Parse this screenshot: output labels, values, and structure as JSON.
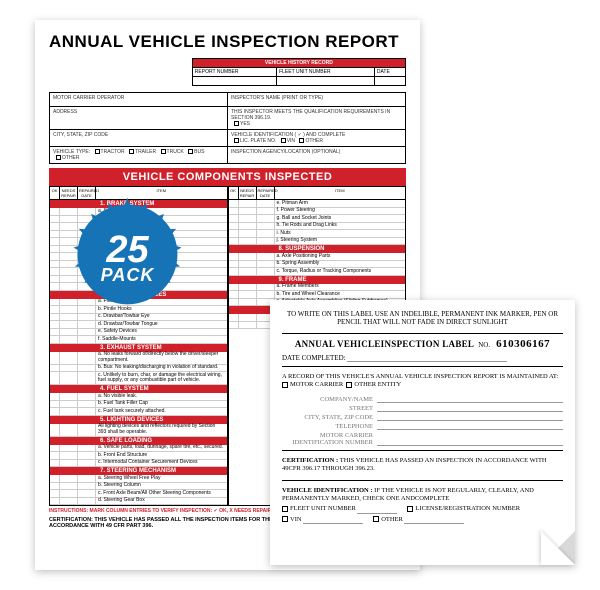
{
  "report": {
    "title": "ANNUAL VEHICLE INSPECTION REPORT",
    "history_header": "VEHICLE HISTORY RECORD",
    "history_cols": [
      "REPORT NUMBER",
      "FLEET UNIT NUMBER",
      "DATE"
    ],
    "info_rows": {
      "r1c1": "MOTOR CARRIER OPERATOR",
      "r1c2": "INSPECTOR'S NAME (PRINT OR TYPE)",
      "r2c1": "ADDRESS",
      "r2c2": "THIS INSPECTOR MEETS THE QUALIFICATION REQUIREMENTS IN SECTION 396.19.",
      "r2c2_opt": "YES",
      "r3c1": "CITY, STATE, ZIP CODE",
      "r3c2": "VEHICLE IDENTIFICATION ( ✓ ) AND COMPLETE",
      "r3c2_opts": [
        "LIC. PLATE NO.",
        "VIN",
        "OTHER"
      ],
      "r4c1_label": "VEHICLE TYPE:",
      "r4c1_opts": [
        "TRACTOR",
        "TRAILER",
        "TRUCK",
        "BUS",
        "OTHER"
      ],
      "r4c2": "INSPECTION AGENCY/LOCATION (OPTIONAL)"
    },
    "components_banner": "VEHICLE COMPONENTS INSPECTED",
    "col_headers": {
      "ok": "OK",
      "repair": "NEEDS REPAIR",
      "date": "REPAIRED DATE",
      "item": "ITEM"
    },
    "sections_left": [
      {
        "title": "1. BRAKE SYSTEM",
        "items": [
          "a. Service Brakes",
          "b. Parking Brake System",
          "c. Brake Drums or Rotors",
          "d. Brake Hose",
          "e. Brake Tubing",
          "f. Low Pressure Warning Device",
          "g. Tractor Protection Valve",
          "h. Air Compressor",
          "i. Electric Brakes",
          "j. Hydraulic Brakes",
          "k. Vacuum Systems"
        ]
      },
      {
        "title": "2. COUPLING DEVICES",
        "items": [
          "a. Fifth Wheels",
          "b. Pintle Hooks",
          "c. Drawbar/Towbar Eye",
          "d. Drawbar/Towbar Tongue",
          "e. Safety Devices",
          "f. Saddle-Mounts"
        ]
      },
      {
        "title": "3. EXHAUST SYSTEM",
        "items": [
          "a. No leaks forward of/directly below the driver/sleeper compartment.",
          "b. Bus: No leaking/discharging in violation of standard.",
          "c. Unlikely to burn, char, or damage the electrical wiring, fuel supply, or any combustible part of vehicle."
        ]
      },
      {
        "title": "4. FUEL SYSTEM",
        "items": [
          "a. No visible leak.",
          "b. Fuel Tank Filler Cap",
          "c. Fuel tank securely attached."
        ]
      },
      {
        "title": "5. LIGHTING DEVICES",
        "items": [
          "All lighting devices and reflectors required by Section 393 shall be operable."
        ]
      },
      {
        "title": "6. SAFE LOADING",
        "items": [
          "a. Vehicle parts, load, dunnage, spare tire, etc., secured.",
          "b. Front End Structure",
          "c. Intermodal Container Securement Devices"
        ]
      },
      {
        "title": "7. STEERING MECHANISM",
        "items": [
          "a. Steering Wheel Free Play",
          "b. Steering Column",
          "c. Front Axle Beam/All Other Steering Components",
          "d. Steering Gear Box"
        ]
      }
    ],
    "sections_right": [
      {
        "title": "",
        "items": [
          "e. Pitman Arm",
          "f. Power Steering",
          "g. Ball and Socket Joints",
          "h. Tie Rods and Drag Links",
          "i. Nuts",
          "j. Steering System"
        ]
      },
      {
        "title": "8. SUSPENSION",
        "items": [
          "a. Axle Positioning Parts",
          "b. Spring Assembly",
          "c. Torque, Radius or Tracking Components"
        ]
      },
      {
        "title": "9. FRAME",
        "items": [
          "a. Frame Members",
          "b. Tire and Wheel Clearance",
          "c. Adjustable Axle Assemblies (Sliding Subframes)"
        ]
      },
      {
        "title": "10. TIRES",
        "items": [
          "a. Steer Axle Tires",
          "b. All Other Tires"
        ]
      }
    ],
    "instructions": "INSTRUCTIONS: MARK COLUMN ENTRIES TO VERIFY INSPECTION: ✓ OK, X NEEDS REPAIR",
    "certification": "CERTIFICATION: THIS VEHICLE HAS PASSED ALL THE INSPECTION ITEMS FOR THE ANNUAL VEHICLE INSPECTION REPORT IN ACCORDANCE WITH 49 CFR PART 396."
  },
  "badge": {
    "number": "25",
    "word": "PACK",
    "color": "#1673b5"
  },
  "label": {
    "top_note": "TO WRITE ON THIS LABEL USE AN INDELIBLE, PERMANENT INK MARKER, PEN OR PENCIL THAT WILL NOT FADE IN DIRECT SUNLIGHT",
    "title": "ANNUAL VEHICLEINSPECTION LABEL",
    "no_label": "NO.",
    "serial": "610306167",
    "date_completed": "DATE COMPLETED:",
    "record_intro": "A RECORD OF THIS VEHICLE'S ANNUAL VEHICLE INSPECTION REPORT IS MAINTAINED AT:",
    "record_opts": [
      "MOTOR CARRIER",
      "OTHER ENTITY"
    ],
    "fields": [
      "COMPANY/NAME",
      "STREET",
      "CITY, STATE, ZIP CODE",
      "TELEPHONE",
      "MOTOR CARRIER IDENTIFICATION NUMBER"
    ],
    "cert_label": "CERTIFICATION :",
    "cert_text": "THIS VEHICLE HAS PASSED AN INSPECTION IN ACCORDANCE WITH 49CFR 396.17 THROUGH 396.23.",
    "vid_label": "VEHICLE IDENTIFICATION :",
    "vid_text": "IF THE VEHICLE IS NOT REGULARLY, CLEARLY, AND PERMANENTLY MARKED, CHECK ONE ANDCOMPLETE",
    "vid_opts": [
      "FLEET UNIT NUMBER",
      "LICENSE/REGISTRATION NUMBER",
      "VIN",
      "OTHER"
    ]
  },
  "colors": {
    "red": "#d0202a",
    "badge": "#1673b5"
  }
}
